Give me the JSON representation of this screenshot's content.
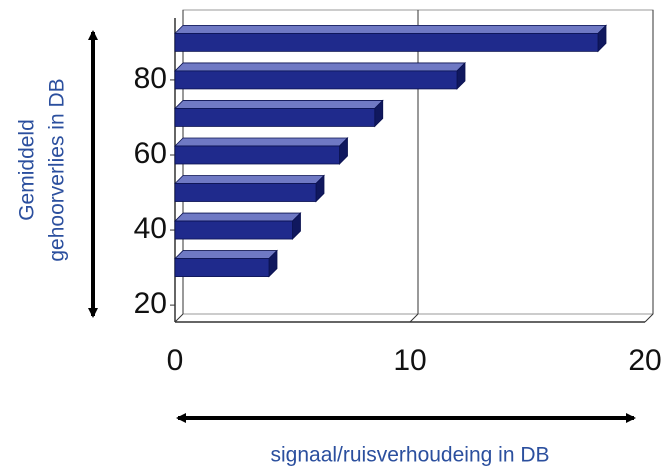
{
  "chart_data": {
    "type": "bar",
    "orientation": "horizontal",
    "y_label_lines": [
      "Gemiddeld",
      "gehoorverlies  in DB"
    ],
    "x_label": "signaal/ruisverhoudeing in DB",
    "y": [
      90,
      80,
      70,
      60,
      50,
      40,
      30
    ],
    "values": [
      18,
      12,
      8.5,
      7,
      6,
      5,
      4
    ],
    "color": "#1f2a8c",
    "xlim": [
      0,
      20
    ],
    "xticks": [
      0,
      10,
      20
    ],
    "ylim": [
      15.5,
      96.5
    ],
    "yticks": [
      20,
      40,
      60,
      80
    ],
    "grid": true
  }
}
